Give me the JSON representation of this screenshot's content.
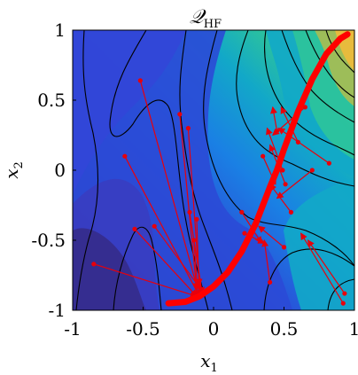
{
  "chart_data": {
    "type": "contour",
    "title": "𝒬",
    "title_subscript": "HF",
    "xlabel": "x",
    "xlabel_subscript": "1",
    "ylabel": "x",
    "ylabel_subscript": "2",
    "xlim": [
      -1,
      1
    ],
    "ylim": [
      -1,
      1
    ],
    "xticks": [
      -1,
      -0.5,
      0,
      0.5,
      1
    ],
    "yticks": [
      -1,
      -0.5,
      0,
      0.5,
      1
    ],
    "xtick_labels": [
      "-1",
      "-0.5",
      "0",
      "0.5",
      "1"
    ],
    "ytick_labels": [
      "-1",
      "-0.5",
      "0",
      "0.5",
      "1"
    ],
    "colormap": [
      "#352a87",
      "#2b4ad6",
      "#1a80e4",
      "#12a8c8",
      "#2ec49a",
      "#a3bd55",
      "#ecba3c",
      "#f9fb0e"
    ],
    "curve": {
      "color": "#ff0000",
      "x": [
        -0.32,
        -0.2,
        -0.1,
        0.0,
        0.1,
        0.2,
        0.3,
        0.4,
        0.45,
        0.5,
        0.6,
        0.7,
        0.8,
        0.9,
        0.95
      ],
      "y": [
        -0.95,
        -0.94,
        -0.9,
        -0.83,
        -0.73,
        -0.58,
        -0.38,
        -0.12,
        0.0,
        0.15,
        0.42,
        0.65,
        0.83,
        0.94,
        0.97
      ]
    },
    "arrows": {
      "color": "#e8000b",
      "start_x": [
        -0.52,
        -0.63,
        -0.56,
        -0.42,
        -0.24,
        -0.18,
        -0.17,
        -0.14,
        -0.12,
        -0.85,
        0.2,
        0.22,
        0.4,
        0.45,
        0.49,
        0.51,
        0.55,
        0.6,
        0.65,
        0.7,
        0.82,
        0.92,
        0.93,
        0.5,
        0.35
      ],
      "start_y": [
        0.64,
        0.1,
        -0.42,
        -0.4,
        0.4,
        0.3,
        -0.3,
        -0.5,
        -0.35,
        -0.67,
        -0.3,
        -0.45,
        -0.8,
        0.28,
        0.0,
        -0.1,
        -0.3,
        0.2,
        0.45,
        0.0,
        0.05,
        -0.95,
        -0.88,
        -0.55,
        0.1
      ],
      "end_x": [
        -0.1,
        -0.1,
        -0.12,
        -0.09,
        -0.12,
        -0.1,
        -0.08,
        -0.11,
        -0.1,
        -0.12,
        0.34,
        0.36,
        0.36,
        0.42,
        0.38,
        0.4,
        0.4,
        0.48,
        0.42,
        0.45,
        0.46,
        0.62,
        0.67,
        0.32,
        0.44
      ],
      "end_y": [
        -0.9,
        -0.9,
        -0.9,
        -0.85,
        -0.85,
        -0.82,
        -0.88,
        -0.9,
        -0.9,
        -0.9,
        -0.52,
        -0.52,
        -0.5,
        0.45,
        0.3,
        0.18,
        -0.1,
        0.45,
        0.25,
        -0.2,
        0.3,
        -0.45,
        -0.5,
        -0.4,
        -0.1
      ]
    }
  }
}
